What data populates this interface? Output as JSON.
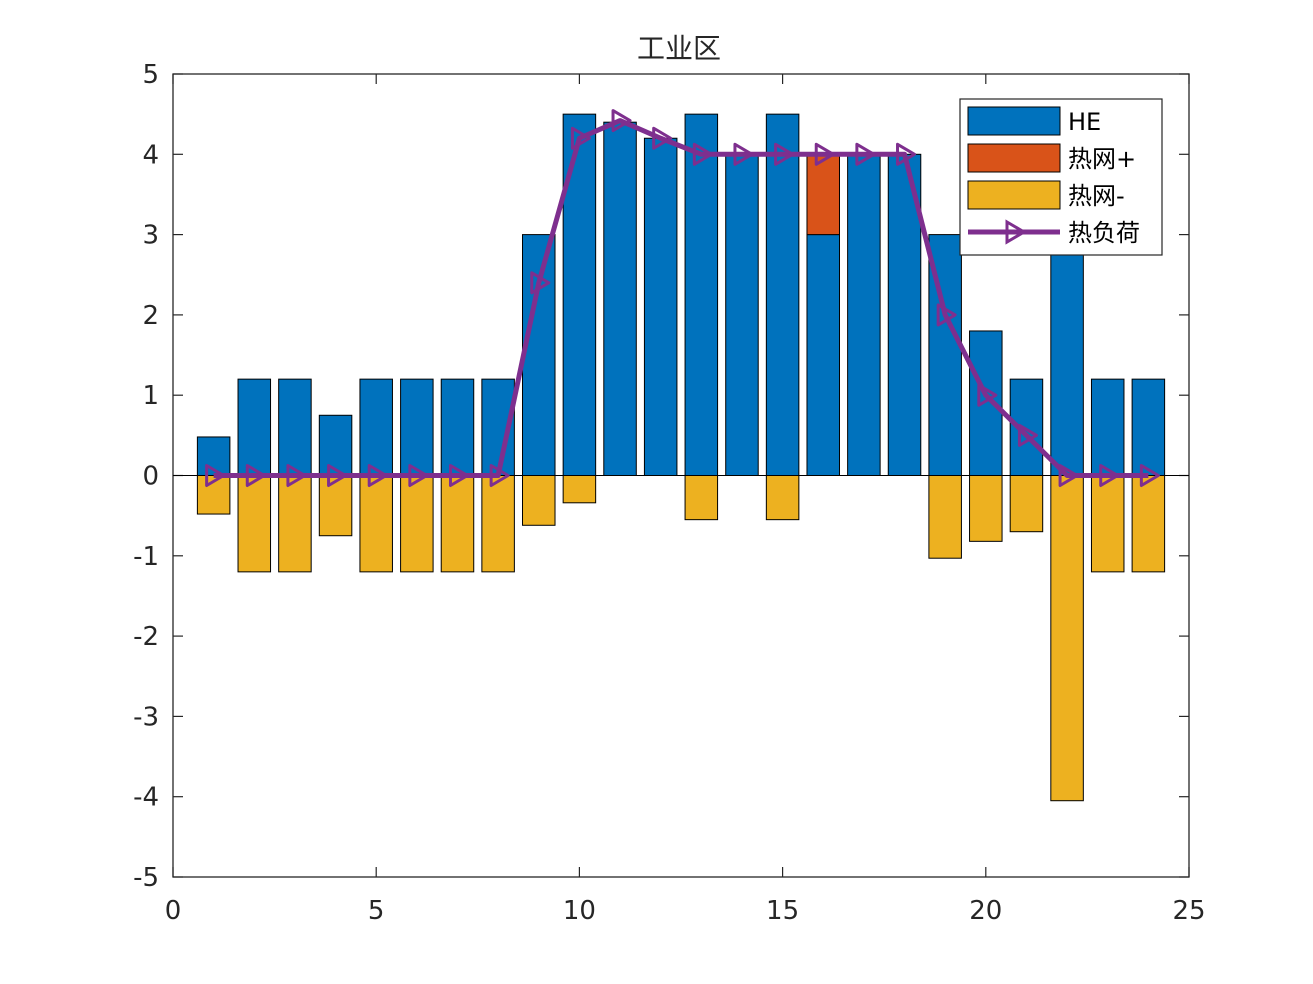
{
  "chart_data": {
    "type": "bar",
    "title": "工业区",
    "xlabel": "",
    "ylabel": "",
    "xlim": [
      0,
      25
    ],
    "ylim": [
      -5,
      5
    ],
    "xticks": [
      0,
      5,
      10,
      15,
      20,
      25
    ],
    "yticks": [
      5,
      4,
      3,
      2,
      1,
      0,
      -1,
      -2,
      -3,
      -4,
      -5
    ],
    "xtick_labels": [
      "0",
      "5",
      "10",
      "15",
      "20",
      "25"
    ],
    "ytick_labels": [
      "5",
      "4",
      "3",
      "2",
      "1",
      "0",
      "-1",
      "-2",
      "-3",
      "-4",
      "-5"
    ],
    "x": [
      1,
      2,
      3,
      4,
      5,
      6,
      7,
      8,
      9,
      10,
      11,
      12,
      13,
      14,
      15,
      16,
      17,
      18,
      19,
      20,
      21,
      22,
      23,
      24
    ],
    "series": [
      {
        "name": "HE",
        "kind": "bar",
        "color": "#0072BD",
        "values": [
          0.48,
          1.2,
          1.2,
          0.75,
          1.2,
          1.2,
          1.2,
          1.2,
          3.0,
          4.5,
          4.4,
          4.2,
          4.5,
          4.0,
          4.5,
          3.0,
          4.0,
          4.0,
          3.0,
          1.8,
          1.2,
          3.0,
          1.2,
          1.2
        ]
      },
      {
        "name": "热网+",
        "kind": "bar",
        "color": "#D95319",
        "values": [
          0,
          0,
          0,
          0,
          0,
          0,
          0,
          0,
          0,
          0,
          0,
          0,
          0,
          0,
          0,
          1.0,
          0,
          0,
          0,
          0,
          0,
          0,
          0,
          0
        ]
      },
      {
        "name": "热网-",
        "kind": "bar",
        "color": "#EDB120",
        "values": [
          -0.48,
          -1.2,
          -1.2,
          -0.75,
          -1.2,
          -1.2,
          -1.2,
          -1.2,
          -0.62,
          -0.34,
          0,
          0,
          -0.55,
          0,
          -0.55,
          0,
          0,
          0,
          -1.03,
          -0.82,
          -0.7,
          -4.05,
          -1.2,
          -1.2
        ]
      },
      {
        "name": "热负荷",
        "kind": "line",
        "color": "#7E2F8E",
        "marker": "triangle-right",
        "values": [
          0,
          0,
          0,
          0,
          0,
          0,
          0,
          0,
          2.4,
          4.2,
          4.42,
          4.2,
          4.0,
          4.0,
          4.0,
          4.0,
          4.0,
          4.0,
          2.0,
          1.0,
          0.5,
          0,
          0,
          0
        ]
      }
    ],
    "legend": {
      "position": "top-right",
      "entries": [
        "HE",
        "热网+",
        "热网-",
        "热负荷"
      ]
    }
  }
}
